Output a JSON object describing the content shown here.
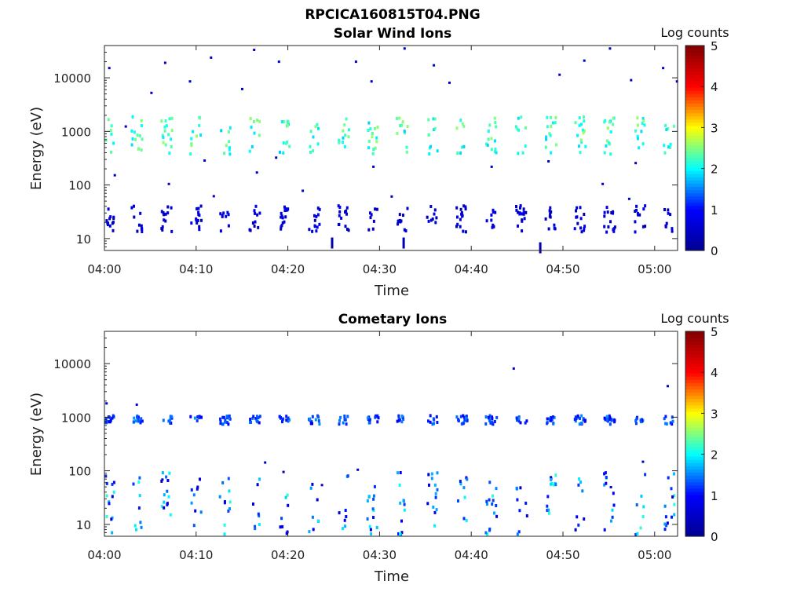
{
  "figure_title": "RPCICA160815T04.PNG",
  "colors": {
    "colormap": [
      "#00008f",
      "#0000ff",
      "#00ffff",
      "#ffff00",
      "#ff0000",
      "#800000"
    ]
  },
  "chart_data": [
    {
      "type": "heatmap",
      "title": "Solar Wind Ions",
      "xlabel": "Time",
      "ylabel": "Energy (eV)",
      "yscale": "log",
      "xticks": [
        "04:00",
        "04:10",
        "04:20",
        "04:30",
        "04:40",
        "04:50",
        "05:00"
      ],
      "xlim_minutes": [
        0,
        62.5
      ],
      "yticks": [
        "10",
        "100",
        "1000",
        "10000"
      ],
      "ylim": [
        6,
        40000
      ],
      "colorbar": {
        "label": "Log counts",
        "range": [
          0,
          5
        ],
        "ticks": [
          "0",
          "1",
          "2",
          "3",
          "4",
          "5"
        ]
      },
      "sweeps_minutes": [
        0,
        3.1,
        6.3,
        9.5,
        12.7,
        15.9,
        19.1,
        22.4,
        25.6,
        28.8,
        32.0,
        35.3,
        38.5,
        41.7,
        45.0,
        48.2,
        51.4,
        54.6,
        57.9,
        61.1
      ],
      "bands": [
        {
          "energy_eV": 900,
          "spread": 0.35,
          "intensity": [
            1.8,
            2.6
          ]
        },
        {
          "energy_eV": 25,
          "spread": 0.25,
          "intensity": [
            0.3,
            0.9
          ]
        }
      ],
      "isolated_points": [
        {
          "t": 0.4,
          "e": 16000,
          "v": 0.4
        },
        {
          "t": 2.2,
          "e": 1300,
          "v": 0.5
        },
        {
          "t": 6.5,
          "e": 20000,
          "v": 0.5
        },
        {
          "t": 9.2,
          "e": 9000,
          "v": 0.5
        },
        {
          "t": 11.5,
          "e": 25000,
          "v": 0.5
        },
        {
          "t": 16.2,
          "e": 35000,
          "v": 0.4
        },
        {
          "t": 18.9,
          "e": 21000,
          "v": 0.5
        },
        {
          "t": 27.3,
          "e": 21000,
          "v": 0.5
        },
        {
          "t": 32.6,
          "e": 37000,
          "v": 0.4
        },
        {
          "t": 35.8,
          "e": 18000,
          "v": 0.5
        },
        {
          "t": 49.5,
          "e": 12000,
          "v": 0.5
        },
        {
          "t": 52.2,
          "e": 22000,
          "v": 0.5
        },
        {
          "t": 55.0,
          "e": 37000,
          "v": 0.4
        },
        {
          "t": 60.8,
          "e": 16000,
          "v": 0.5
        },
        {
          "t": 5.0,
          "e": 5500,
          "v": 0.5
        },
        {
          "t": 14.9,
          "e": 6500,
          "v": 0.5
        },
        {
          "t": 29.0,
          "e": 9000,
          "v": 0.5
        },
        {
          "t": 37.5,
          "e": 8500,
          "v": 0.5
        },
        {
          "t": 57.3,
          "e": 9500,
          "v": 0.5
        },
        {
          "t": 62.3,
          "e": 9000,
          "v": 0.5
        },
        {
          "t": 10.8,
          "e": 300,
          "v": 0.5
        },
        {
          "t": 16.5,
          "e": 180,
          "v": 0.5
        },
        {
          "t": 18.6,
          "e": 340,
          "v": 0.5
        },
        {
          "t": 29.2,
          "e": 230,
          "v": 0.5
        },
        {
          "t": 42.1,
          "e": 230,
          "v": 0.5
        },
        {
          "t": 48.3,
          "e": 290,
          "v": 0.5
        },
        {
          "t": 57.8,
          "e": 270,
          "v": 0.5
        },
        {
          "t": 11.8,
          "e": 65,
          "v": 0.5
        },
        {
          "t": 21.5,
          "e": 82,
          "v": 0.5
        },
        {
          "t": 31.2,
          "e": 64,
          "v": 0.5
        },
        {
          "t": 57.1,
          "e": 58,
          "v": 0.5
        },
        {
          "t": 54.2,
          "e": 110,
          "v": 0.5
        },
        {
          "t": 1.0,
          "e": 160,
          "v": 0.4
        },
        {
          "t": 6.9,
          "e": 110,
          "v": 0.5
        },
        {
          "t": 24.7,
          "e": 8,
          "v": 0.3
        },
        {
          "t": 32.5,
          "e": 8,
          "v": 0.3
        },
        {
          "t": 47.4,
          "e": 6.5,
          "v": 0.3
        }
      ]
    },
    {
      "type": "heatmap",
      "title": "Cometary Ions",
      "xlabel": "Time",
      "ylabel": "Energy (eV)",
      "yscale": "log",
      "xticks": [
        "04:00",
        "04:10",
        "04:20",
        "04:30",
        "04:40",
        "04:50",
        "05:00"
      ],
      "xlim_minutes": [
        0,
        62.5
      ],
      "yticks": [
        "10",
        "100",
        "1000",
        "10000"
      ],
      "ylim": [
        6,
        40000
      ],
      "colorbar": {
        "label": "Log counts",
        "range": [
          0,
          5
        ],
        "ticks": [
          "0",
          "1",
          "2",
          "3",
          "4",
          "5"
        ]
      },
      "sweeps_minutes": [
        0,
        3.1,
        6.3,
        9.5,
        12.7,
        15.9,
        19.1,
        22.4,
        25.6,
        28.8,
        32.0,
        35.3,
        38.5,
        41.7,
        45.0,
        48.2,
        51.4,
        54.6,
        57.9,
        61.1
      ],
      "bands": [
        {
          "energy_eV": 950,
          "spread": 0.08,
          "intensity": [
            0.9,
            1.6
          ]
        },
        {
          "energy_eV": 25,
          "spread": 0.6,
          "intensity": [
            0.6,
            2.2
          ]
        }
      ],
      "isolated_points": [
        {
          "t": 0.1,
          "e": 1900,
          "v": 0.6
        },
        {
          "t": 3.4,
          "e": 1800,
          "v": 0.6
        },
        {
          "t": 44.5,
          "e": 8500,
          "v": 0.5
        },
        {
          "t": 61.3,
          "e": 4000,
          "v": 0.5
        },
        {
          "t": 6.2,
          "e": 72,
          "v": 0.5
        },
        {
          "t": 17.4,
          "e": 150,
          "v": 0.5
        },
        {
          "t": 19.4,
          "e": 100,
          "v": 0.5
        },
        {
          "t": 23.6,
          "e": 57,
          "v": 0.5
        },
        {
          "t": 27.5,
          "e": 110,
          "v": 0.5
        },
        {
          "t": 55.1,
          "e": 52,
          "v": 0.5
        },
        {
          "t": 58.6,
          "e": 155,
          "v": 0.5
        }
      ]
    }
  ]
}
